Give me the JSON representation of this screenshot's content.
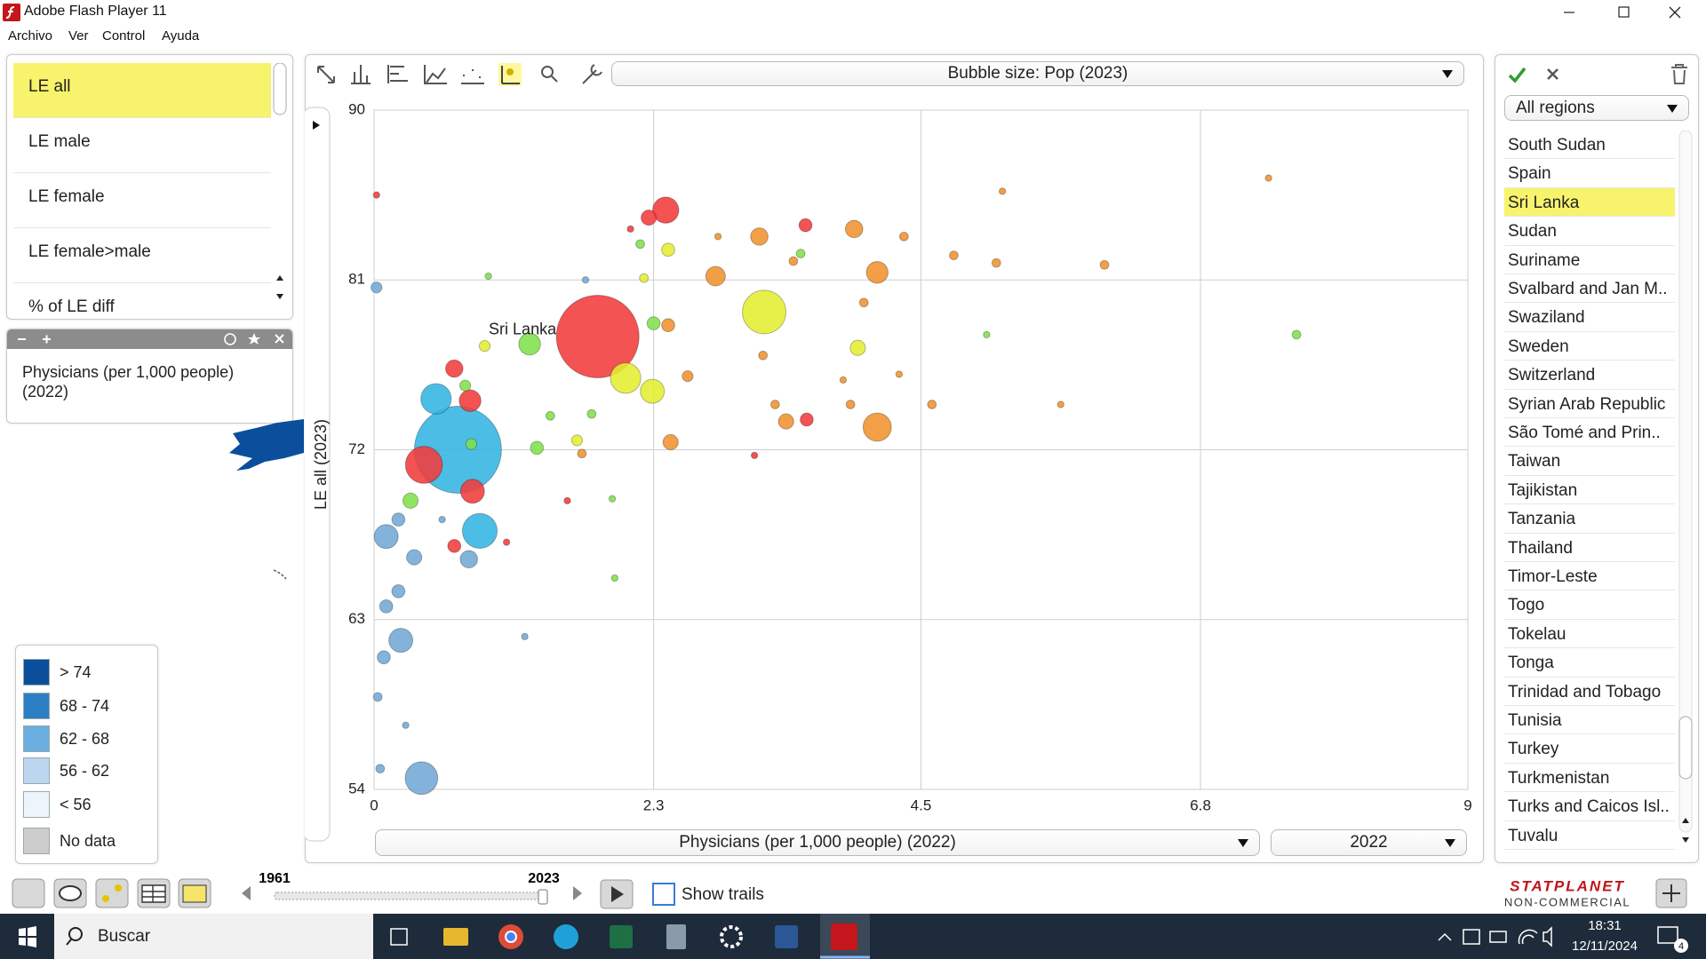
{
  "window": {
    "title": "Adobe Flash Player 11",
    "menu": [
      "Archivo",
      "Ver",
      "Control",
      "Ayuda"
    ]
  },
  "indicators": {
    "items": [
      "LE all",
      "LE male",
      "LE female",
      "LE female>male",
      "% of LE diff"
    ],
    "highlighted": "LE all"
  },
  "indicator_panel": {
    "text": "Physicians (per 1,000 people) (2022)"
  },
  "legend": {
    "items": [
      {
        "label": "> 74",
        "color": "#0b4f9c"
      },
      {
        "label": "68 - 74",
        "color": "#2d7fc4"
      },
      {
        "label": "62 - 68",
        "color": "#6aaee0"
      },
      {
        "label": "56 - 62",
        "color": "#bcd6ef"
      },
      {
        "label": "< 56",
        "color": "#eef4fc"
      },
      {
        "label": "No data",
        "color": "#cccccc"
      }
    ]
  },
  "chart_data": {
    "type": "bubble",
    "title": "Bubble size: Pop (2023)",
    "x_label": "Physicians (per 1,000 people)  (2022)",
    "x_year": "2022",
    "y_label": "LE all (2023)",
    "xlim": [
      0,
      9
    ],
    "xticks": [
      0,
      2.3,
      4.5,
      6.8,
      9
    ],
    "ylim": [
      54,
      90
    ],
    "yticks": [
      54,
      63,
      72,
      81,
      90
    ],
    "grid": true,
    "x": [
      1.84,
      0.69,
      2.4,
      2.26,
      3.21,
      2.07,
      2.29,
      4.14,
      4.14,
      2.81,
      3.17,
      3.95,
      2.44,
      3.39,
      2.42,
      2.42,
      3.98,
      0.87,
      0.51,
      0.41,
      0.79,
      0.81,
      0.66,
      0.66,
      0.39,
      0.22,
      0.1,
      0.78,
      0.33,
      0.2,
      0.2,
      0.1,
      0.08,
      0.3,
      1.34,
      2.3,
      0.8,
      0.75,
      3.56,
      3.55,
      7.36,
      5.17,
      6.01,
      5.12,
      7.59,
      5.04,
      5.65,
      4.59,
      4.77,
      4.36,
      4.03,
      1.67,
      1.98,
      1.24,
      0.26,
      0.05,
      0.03,
      0.02,
      0.02,
      2.58,
      2.11,
      2.19,
      2.22,
      3.2,
      3.3,
      3.92,
      3.13,
      1.96,
      1.09,
      0.56,
      0.94,
      0.91,
      1.45,
      1.79,
      1.59,
      1.71,
      1.74,
      3.45,
      3.86,
      4.32,
      3.51,
      2.83,
      1.28
    ],
    "values": [
      78.0,
      72.0,
      84.7,
      84.3,
      79.3,
      75.8,
      75.1,
      73.2,
      81.4,
      81.2,
      83.3,
      83.7,
      72.4,
      73.5,
      78.6,
      82.6,
      77.4,
      67.7,
      74.7,
      71.2,
      74.6,
      69.8,
      76.3,
      66.9,
      54.6,
      61.9,
      67.4,
      66.2,
      66.3,
      68.3,
      64.5,
      63.7,
      61.0,
      69.3,
      72.1,
      78.7,
      72.3,
      75.4,
      73.6,
      83.9,
      86.4,
      85.7,
      81.8,
      81.9,
      78.1,
      78.1,
      74.4,
      74.4,
      82.3,
      83.3,
      79.8,
      72.5,
      65.2,
      62.1,
      57.4,
      55.1,
      58.9,
      80.6,
      85.5,
      75.9,
      83.7,
      82.9,
      81.1,
      77.0,
      74.4,
      74.4,
      71.7,
      69.4,
      67.1,
      68.3,
      81.2,
      77.5,
      73.8,
      73.9,
      69.3,
      71.8,
      81.0,
      82.0,
      75.7,
      76.0,
      82.4,
      83.3,
      77.6
    ],
    "sizes": [
      38,
      40,
      12,
      7,
      20,
      14,
      11,
      13,
      10,
      9,
      8,
      8,
      7,
      7,
      6,
      6,
      7,
      16,
      14,
      17,
      10,
      11,
      8,
      6,
      15,
      11,
      11,
      8,
      7,
      6,
      6,
      6,
      6,
      7,
      6,
      6,
      5,
      5,
      6,
      6,
      3,
      3,
      4,
      4,
      4,
      3,
      3,
      4,
      4,
      4,
      4,
      5,
      3,
      3,
      3,
      4,
      4,
      5,
      3,
      5,
      3,
      4,
      4,
      4,
      4,
      4,
      3,
      3,
      3,
      3,
      3,
      5,
      4,
      4,
      3,
      4,
      3,
      4,
      3,
      3,
      4,
      3,
      10
    ],
    "colors": [
      "#f23b3b",
      "#33b5e3",
      "#f23b3b",
      "#f23b3b",
      "#e4ee30",
      "#e4ee30",
      "#e4ee30",
      "#f0922e",
      "#f0922e",
      "#f0922e",
      "#f0922e",
      "#f0922e",
      "#f0922e",
      "#f0922e",
      "#f0922e",
      "#e4ee30",
      "#e4ee30",
      "#33b5e3",
      "#33b5e3",
      "#f23b3b",
      "#f23b3b",
      "#f23b3b",
      "#f23b3b",
      "#f23b3b",
      "#72a8d6",
      "#72a8d6",
      "#72a8d6",
      "#72a8d6",
      "#72a8d6",
      "#72a8d6",
      "#72a8d6",
      "#72a8d6",
      "#72a8d6",
      "#80e04a",
      "#80e04a",
      "#80e04a",
      "#80e04a",
      "#80e04a",
      "#f23b3b",
      "#f23b3b",
      "#f0922e",
      "#f0922e",
      "#f0922e",
      "#f0922e",
      "#80e04a",
      "#80e04a",
      "#f0922e",
      "#f0922e",
      "#f0922e",
      "#f0922e",
      "#f0922e",
      "#e4ee30",
      "#80e04a",
      "#72a8d6",
      "#72a8d6",
      "#72a8d6",
      "#72a8d6",
      "#72a8d6",
      "#f23b3b",
      "#f0922e",
      "#f23b3b",
      "#80e04a",
      "#e4ee30",
      "#f0922e",
      "#f0922e",
      "#f0922e",
      "#f23b3b",
      "#80e04a",
      "#f23b3b",
      "#72a8d6",
      "#80e04a",
      "#e4ee30",
      "#80e04a",
      "#80e04a",
      "#f23b3b",
      "#f0922e",
      "#72a8d6",
      "#f0922e",
      "#f0922e",
      "#f0922e",
      "#80e04a",
      "#f0922e",
      "#80e04a"
    ],
    "annotations": [
      {
        "text": "Sri Lanka",
        "x": 1.28,
        "y": 77.6
      }
    ]
  },
  "regions": {
    "dropdown": "All regions",
    "countries": [
      "South Sudan",
      "Spain",
      "Sri Lanka",
      "Sudan",
      "Suriname",
      "Svalbard and Jan M..",
      "Swaziland",
      "Sweden",
      "Switzerland",
      "Syrian Arab Republic",
      "São Tomé and Prin..",
      "Taiwan",
      "Tajikistan",
      "Tanzania",
      "Thailand",
      "Timor-Leste",
      "Togo",
      "Tokelau",
      "Tonga",
      "Trinidad and Tobago",
      "Tunisia",
      "Turkey",
      "Turkmenistan",
      "Turks and Caicos Isl..",
      "Tuvalu"
    ],
    "highlighted": "Sri Lanka"
  },
  "timeline": {
    "start": "1961",
    "end": "2023",
    "trails": "Show trails"
  },
  "brand": {
    "name": "STATPLANET",
    "edition": "NON-COMMERCIAL"
  },
  "taskbar": {
    "search": "Buscar",
    "time": "18:31",
    "date": "12/11/2024",
    "notifications": "4"
  }
}
